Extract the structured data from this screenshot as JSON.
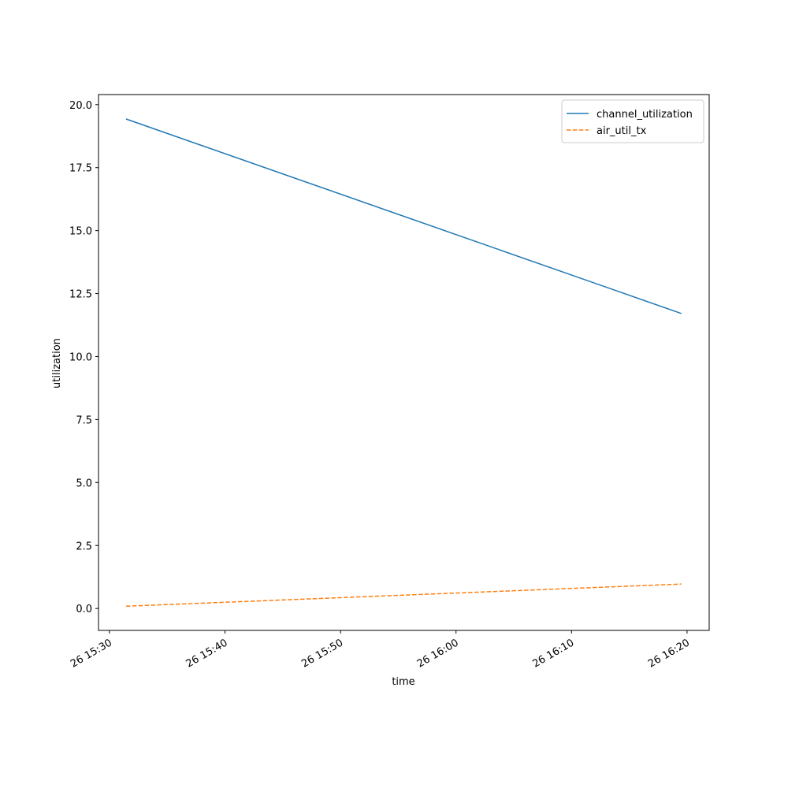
{
  "chart_data": {
    "type": "line",
    "xlabel": "time",
    "ylabel": "utilization",
    "x": [
      "26 15:31:26",
      "26 16:19:30"
    ],
    "series": [
      {
        "name": "channel_utilization",
        "color": "#1f77b4",
        "linestyle": "solid",
        "values": [
          19.43,
          11.71
        ]
      },
      {
        "name": "air_util_tx",
        "color": "#ff7f0e",
        "linestyle": "dashed",
        "values": [
          0.09,
          0.97
        ]
      }
    ],
    "xlim": [
      "26 15:29:03",
      "26 16:21:55"
    ],
    "xticks": [
      "26 15:30",
      "26 15:40",
      "26 15:50",
      "26 16:00",
      "26 16:10",
      "26 16:20"
    ],
    "ylim": [
      -0.87,
      20.4
    ],
    "yticks": [
      {
        "value": 0,
        "label": "0.0"
      },
      {
        "value": 2.5,
        "label": "2.5"
      },
      {
        "value": 5,
        "label": "5.0"
      },
      {
        "value": 7.5,
        "label": "7.5"
      },
      {
        "value": 10,
        "label": "10.0"
      },
      {
        "value": 12.5,
        "label": "12.5"
      },
      {
        "value": 15,
        "label": "15.0"
      },
      {
        "value": 17.5,
        "label": "17.5"
      },
      {
        "value": 20,
        "label": "20.0"
      }
    ],
    "legend": "upper right",
    "grid": false
  }
}
